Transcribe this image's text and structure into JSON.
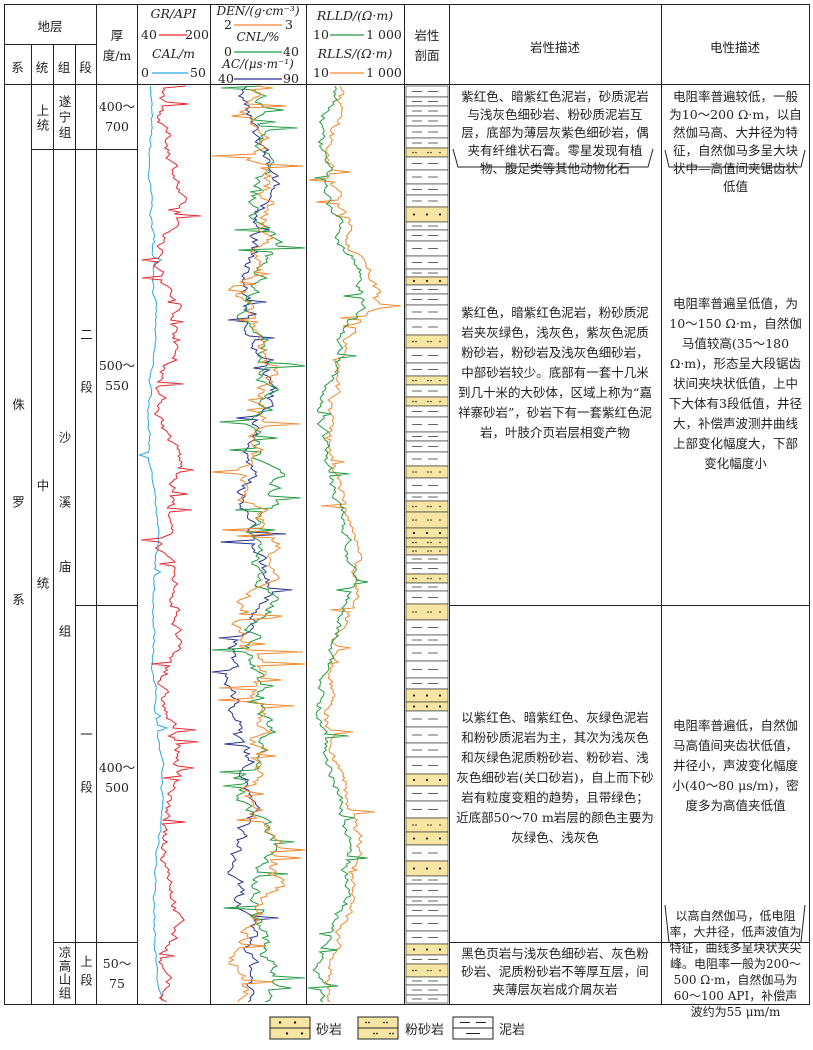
{
  "header": {
    "strata": "地层",
    "system": "系",
    "series": "统",
    "group": "组",
    "member": "段",
    "thickness": "厚度/m",
    "gr_label": "GR/API",
    "gr_min": "40",
    "gr_max": "200",
    "cal_label": "CAL/m",
    "cal_min": "0",
    "cal_max": "50",
    "den_label": "DEN/(g·cm⁻³)",
    "den_min": "2",
    "den_max": "3",
    "cnl_label": "CNL/%",
    "cnl_min": "0",
    "cnl_max": "40",
    "ac_label": "AC/(μs·m⁻¹)",
    "ac_min": "40",
    "ac_max": "90",
    "rlld_label": "RLLD/(Ω·m)",
    "rlld_min": "10",
    "rlld_max": "1 000",
    "rlls_label": "RLLS/(Ω·m)",
    "rlls_min": "10",
    "rlls_max": "1 000",
    "lith_profile": "岩性剖面",
    "lith_desc": "岩性描述",
    "elec_desc": "电性描述"
  },
  "strata": {
    "system": "侏罗系",
    "series_upper": "上统",
    "series_middle": "中统",
    "group_suining": "遂宁组",
    "group_shaximiao": "沙溪庙组",
    "group_lianggaoshan": "凉高山组",
    "member_2": "二段",
    "member_1": "一段",
    "member_upper": "上段",
    "thick_suining": "400～700",
    "thick_m2": "500～550",
    "thick_m1": "400～500",
    "thick_lgs": "50～75"
  },
  "descriptions": {
    "suining_lith": "紫红色、暗紫红色泥岩，砂质泥岩与浅灰色细砂岩、粉砂质泥岩互层，底部为薄层灰紫色细砂岩，偶夹有纤维状石膏。零星发现有植物、腹足类等其他动物化石",
    "suining_elec": "电阻率普遍较低，一般为10～200 Ω·m，以自然伽马高、大井径为特征，自然伽马多呈大块状中—高值间夹锯齿状低值",
    "m2_lith": "紫红色，暗紫红色泥岩，粉砂质泥岩夹灰绿色，浅灰色，紫灰色泥质粉砂岩，粉砂岩及浅灰色细砂岩，中部砂岩较少。底部有一套十几米到几十米的大砂体，区域上称为“嘉祥寨砂岩”，砂岩下有一套紫红色泥岩，叶肢介页岩层相变产物",
    "m2_elec": "电阻率普遍呈低值，为10～150 Ω·m，自然伽马值较高(35～180 Ω·m)，形态呈大段锯齿状间夹块状低值，上中下大体有3段低值，井径大，补偿声波测井曲线上部变化幅度大，下部变化幅度小",
    "m1_lith": "以紫红色、暗紫红色、灰绿色泥岩和粉砂质泥岩为主，其次为浅灰色和灰绿色泥质粉砂岩、粉砂岩、浅灰色细砂岩(关口砂岩)，自上而下砂岩有粒度变粗的趋势，且带绿色；近底部50～70 m岩层的颜色主要为灰绿色、浅灰色",
    "m1_elec": "电阻率普遍低，自然伽马高值间夹齿状低值，井径小，声波变化幅度小(40～80 μs/m)，密度多为高值夹低值",
    "lgs_lith": "黑色页岩与浅灰色细砂岩、灰色粉砂岩、泥质粉砂岩不等厚互层，间夹薄层灰岩成介屑灰岩",
    "lgs_elec": "以高自然伽马，低电阻率，大井径，低声波值为特征，曲线多呈块状夹尖峰。电阻率一般为200～500 Ω·m，自然伽马为60～100 API，补偿声波约为55 μm/m"
  },
  "legend": {
    "sandstone": "砂岩",
    "siltstone": "粉砂岩",
    "mudstone": "泥岩"
  },
  "colors": {
    "gr": "#e8262c",
    "cal": "#29a9e0",
    "den": "#e8262c",
    "cnl": "#1f9a3c",
    "ac": "#27338f",
    "orange": "#f0872a",
    "green": "#1f9a3c",
    "sand_fill": "#f7e6a3"
  }
}
